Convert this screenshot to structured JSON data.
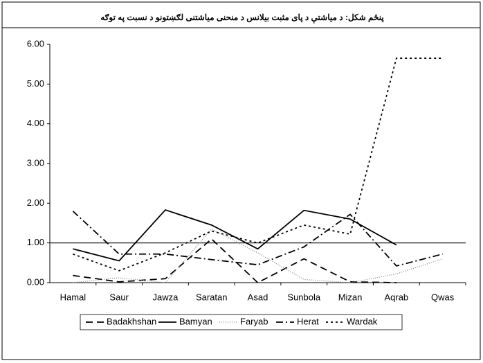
{
  "chart_data": {
    "type": "line",
    "title": "پنځم شکل: د مياشتې د پاى مثبت بيلانس د منحنى مياشتنى لګښتونو د نسبت په توګه",
    "categories": [
      "Hamal",
      "Saur",
      "Jawza",
      "Saratan",
      "Asad",
      "Sunbola",
      "Mizan",
      "Aqrab",
      "Qwas"
    ],
    "series": [
      {
        "name": "Badakhshan",
        "color": "#000000",
        "dash": "10,6",
        "width": 1.8,
        "values": [
          0.18,
          0.02,
          0.1,
          1.1,
          0.0,
          0.6,
          0.02,
          0.0,
          null
        ]
      },
      {
        "name": "Bamyan",
        "color": "#000000",
        "dash": "",
        "width": 1.8,
        "values": [
          0.85,
          0.55,
          1.83,
          1.45,
          0.85,
          1.82,
          1.6,
          0.95,
          null
        ]
      },
      {
        "name": "Faryab",
        "color": "#888888",
        "dash": "1,2",
        "width": 1.3,
        "values": [
          0.0,
          0.12,
          0.0,
          1.35,
          0.75,
          0.08,
          0.0,
          0.22,
          0.6
        ]
      },
      {
        "name": "Herat",
        "color": "#000000",
        "dash": "10,4,2,4",
        "width": 1.8,
        "values": [
          1.8,
          0.72,
          0.72,
          0.58,
          0.45,
          0.9,
          1.72,
          0.42,
          0.72
        ]
      },
      {
        "name": "Wardak",
        "color": "#000000",
        "dash": "3,4",
        "width": 1.8,
        "values": [
          0.72,
          0.3,
          0.75,
          1.3,
          1.0,
          1.45,
          1.22,
          5.65,
          5.65
        ]
      }
    ],
    "hlines": [
      1
    ],
    "ylim": [
      0,
      6
    ],
    "yticks": [
      {
        "value": 0,
        "label": "0.00"
      },
      {
        "value": 1,
        "label": "1.00"
      },
      {
        "value": 2,
        "label": "2.00"
      },
      {
        "value": 3,
        "label": "3.00"
      },
      {
        "value": 4,
        "label": "4.00"
      },
      {
        "value": 5,
        "label": "5.00"
      },
      {
        "value": 6,
        "label": "6.00"
      }
    ],
    "legend": "bottom"
  }
}
